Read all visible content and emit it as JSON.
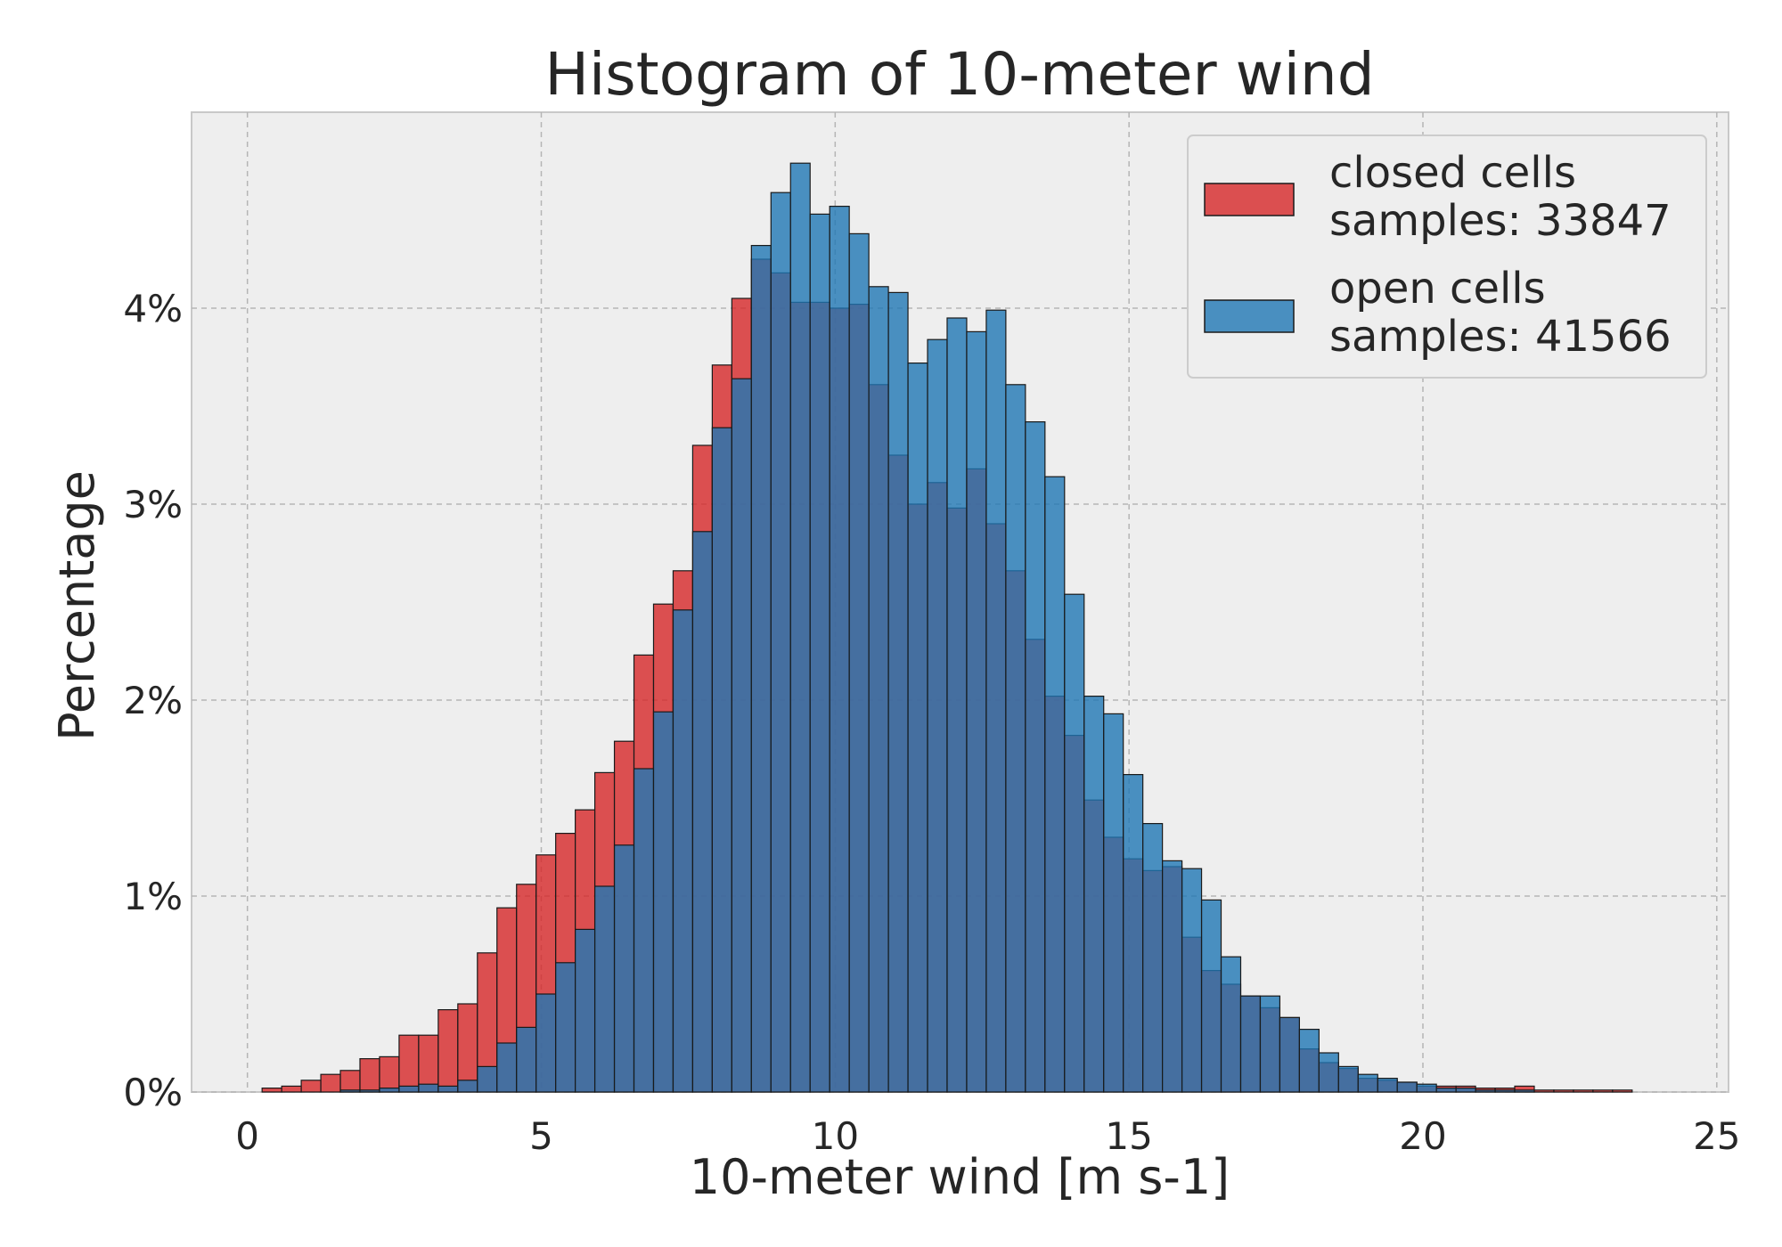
{
  "chart_data": {
    "type": "bar",
    "title": "Histogram of 10-meter wind",
    "xlabel": "10-meter wind [m s-1]",
    "ylabel": "Percentage",
    "xlim": [
      -0.95,
      25.2
    ],
    "ylim": [
      0,
      5.0
    ],
    "xticks": [
      0,
      5,
      10,
      15,
      20,
      25
    ],
    "xtick_labels": [
      "0",
      "5",
      "10",
      "15",
      "20",
      "25"
    ],
    "yticks": [
      0,
      1,
      2,
      3,
      4
    ],
    "ytick_labels": [
      "0%",
      "1%",
      "2%",
      "3%",
      "4%"
    ],
    "grid": true,
    "legend_position": "top-right",
    "bin_edges_start": 0.25,
    "bin_width": 0.333,
    "series": [
      {
        "name": "closed cells",
        "legend_line2": "samples: 33847",
        "color": "#d62728",
        "values": [
          0.02,
          0.03,
          0.06,
          0.09,
          0.11,
          0.17,
          0.18,
          0.29,
          0.29,
          0.42,
          0.45,
          0.71,
          0.94,
          1.06,
          1.21,
          1.32,
          1.44,
          1.63,
          1.79,
          2.23,
          2.49,
          2.66,
          3.3,
          3.71,
          4.05,
          4.25,
          4.18,
          4.03,
          4.03,
          4.0,
          4.02,
          3.61,
          3.25,
          3.0,
          3.11,
          2.98,
          3.18,
          2.9,
          2.66,
          2.31,
          2.02,
          1.82,
          1.49,
          1.3,
          1.19,
          1.13,
          1.15,
          0.79,
          0.62,
          0.55,
          0.49,
          0.43,
          0.38,
          0.22,
          0.15,
          0.12,
          0.07,
          0.06,
          0.05,
          0.03,
          0.03,
          0.03,
          0.02,
          0.02,
          0.03,
          0.01,
          0.01,
          0.01,
          0.01,
          0.01
        ]
      },
      {
        "name": "open cells",
        "legend_line2": "samples: 41566",
        "color": "#1f77b4",
        "values": [
          0.0,
          0.0,
          0.0,
          0.0,
          0.01,
          0.01,
          0.02,
          0.03,
          0.04,
          0.03,
          0.06,
          0.13,
          0.25,
          0.33,
          0.5,
          0.66,
          0.83,
          1.05,
          1.26,
          1.65,
          1.94,
          2.46,
          2.86,
          3.39,
          3.64,
          4.32,
          4.59,
          4.74,
          4.48,
          4.52,
          4.38,
          4.11,
          4.08,
          3.72,
          3.84,
          3.95,
          3.88,
          3.99,
          3.61,
          3.42,
          3.14,
          2.54,
          2.02,
          1.93,
          1.62,
          1.37,
          1.18,
          1.14,
          0.98,
          0.69,
          0.49,
          0.49,
          0.38,
          0.32,
          0.2,
          0.13,
          0.09,
          0.07,
          0.05,
          0.04,
          0.02,
          0.02,
          0.01,
          0.01,
          0.01,
          0.0,
          0.0,
          0.0,
          0.0,
          0.0
        ]
      }
    ]
  }
}
